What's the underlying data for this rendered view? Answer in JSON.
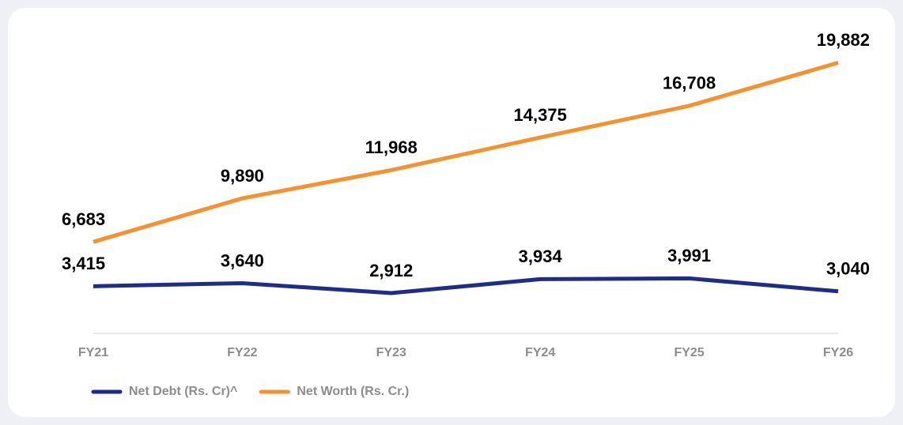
{
  "chart_data": {
    "type": "line",
    "categories": [
      "FY21",
      "FY22",
      "FY23",
      "FY24",
      "FY25",
      "FY26"
    ],
    "series": [
      {
        "name": "Net Debt (Rs. Cr)^",
        "color": "#1f2d8a",
        "values": [
          3415,
          3640,
          2912,
          3934,
          3991,
          3040
        ],
        "value_labels": [
          "3,415",
          "3,640",
          "2,912",
          "3,934",
          "3,991",
          "3,040"
        ]
      },
      {
        "name": "Net Worth (Rs. Cr.)",
        "color": "#f5912f",
        "values": [
          6683,
          9890,
          11968,
          14375,
          16708,
          19882
        ],
        "value_labels": [
          "6,683",
          "9,890",
          "11,968",
          "14,375",
          "16,708",
          "19,882"
        ]
      }
    ],
    "ylim": [
      0,
      22000
    ],
    "grid": false,
    "legend": "bottom-left"
  }
}
